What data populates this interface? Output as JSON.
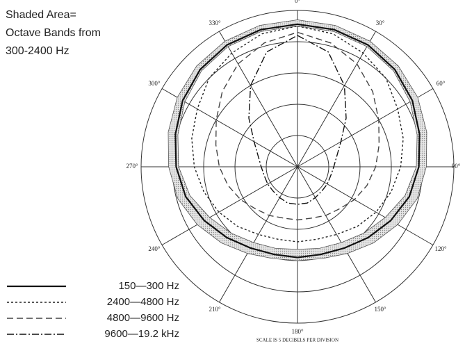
{
  "chart_data": {
    "type": "polar",
    "note": [
      "Shaded Area=",
      "Octave Bands from",
      "300-2400 Hz"
    ],
    "footer": "SCALE IS 5 DECIBELS PER DIVISION",
    "angles": [
      0,
      15,
      30,
      45,
      60,
      75,
      90,
      105,
      120,
      135,
      150,
      165,
      180,
      195,
      210,
      225,
      240,
      255,
      270,
      285,
      300,
      315,
      330,
      345
    ],
    "angle_ticks": [
      {
        "value": 0,
        "label": "0°"
      },
      {
        "value": 30,
        "label": "30°"
      },
      {
        "value": 60,
        "label": "60°"
      },
      {
        "value": 90,
        "label": "90°"
      },
      {
        "value": 120,
        "label": "120°"
      },
      {
        "value": 150,
        "label": "150°"
      },
      {
        "value": 180,
        "label": "180°"
      },
      {
        "value": 210,
        "label": "210°"
      },
      {
        "value": 240,
        "label": "240°"
      },
      {
        "value": 270,
        "label": "270°"
      },
      {
        "value": 300,
        "label": "300°"
      },
      {
        "value": 330,
        "label": "330°"
      }
    ],
    "rlim": [
      -25,
      0
    ],
    "rticks": [
      -20,
      -15,
      -10,
      -5,
      0
    ],
    "band": {
      "color": "#c8c8c8",
      "upper": [
        -1.5,
        -1.6,
        -1.8,
        -2.2,
        -2.8,
        -3.6,
        -4.4,
        -5.2,
        -6.5,
        -7.8,
        -9,
        -9.8,
        -10,
        -9.8,
        -9,
        -7.8,
        -6.5,
        -5.2,
        -4.4,
        -3.6,
        -2.8,
        -2.2,
        -1.8,
        -1.6
      ],
      "lower": [
        -2.5,
        -2.6,
        -2.8,
        -3.3,
        -4.2,
        -5.2,
        -6,
        -7.2,
        -8.8,
        -10,
        -11,
        -11.5,
        -11.8,
        -11.5,
        -11,
        -10,
        -8.8,
        -7.2,
        -6,
        -5.2,
        -4.2,
        -3.3,
        -2.8,
        -2.6
      ]
    },
    "series": [
      {
        "name": "150—300 Hz",
        "color": "#111111",
        "style": "solid",
        "values": [
          -2.2,
          -2.3,
          -2.5,
          -3,
          -3.8,
          -4.8,
          -5.6,
          -6.5,
          -7.8,
          -9,
          -10,
          -10.5,
          -10.5,
          -10.5,
          -10,
          -9,
          -7.8,
          -6.5,
          -5.6,
          -4.8,
          -3.8,
          -3,
          -2.5,
          -2.3
        ]
      },
      {
        "name": "2400—4800 Hz",
        "color": "#222222",
        "style": "dotted",
        "values": [
          -2.5,
          -3,
          -4,
          -5,
          -6.5,
          -7.5,
          -8.5,
          -9.5,
          -10.5,
          -11.5,
          -12.5,
          -13,
          -13,
          -13,
          -12.5,
          -11.5,
          -10.5,
          -9.5,
          -8.5,
          -7.5,
          -6.5,
          -5,
          -4,
          -3
        ]
      },
      {
        "name": "4800—9600 Hz",
        "color": "#444444",
        "style": "dashed",
        "values": [
          -3.5,
          -4.5,
          -6,
          -8,
          -10,
          -11.5,
          -12.5,
          -13.5,
          -14.5,
          -15.5,
          -16,
          -16.5,
          -16.5,
          -16.5,
          -16,
          -15.5,
          -14.5,
          -13.5,
          -12.5,
          -11.5,
          -10,
          -8,
          -6,
          -4.5
        ]
      },
      {
        "name": "9600—19.2 kHz",
        "color": "#111111",
        "style": "dashdot",
        "values": [
          -4,
          -6,
          -10,
          -14,
          -17,
          -18.5,
          -19.2,
          -19.5,
          -19.5,
          -19.5,
          -19.3,
          -19,
          -19,
          -19,
          -19.3,
          -19.5,
          -19.5,
          -19.5,
          -19.2,
          -18.5,
          -17,
          -14,
          -10,
          -6
        ]
      }
    ]
  }
}
